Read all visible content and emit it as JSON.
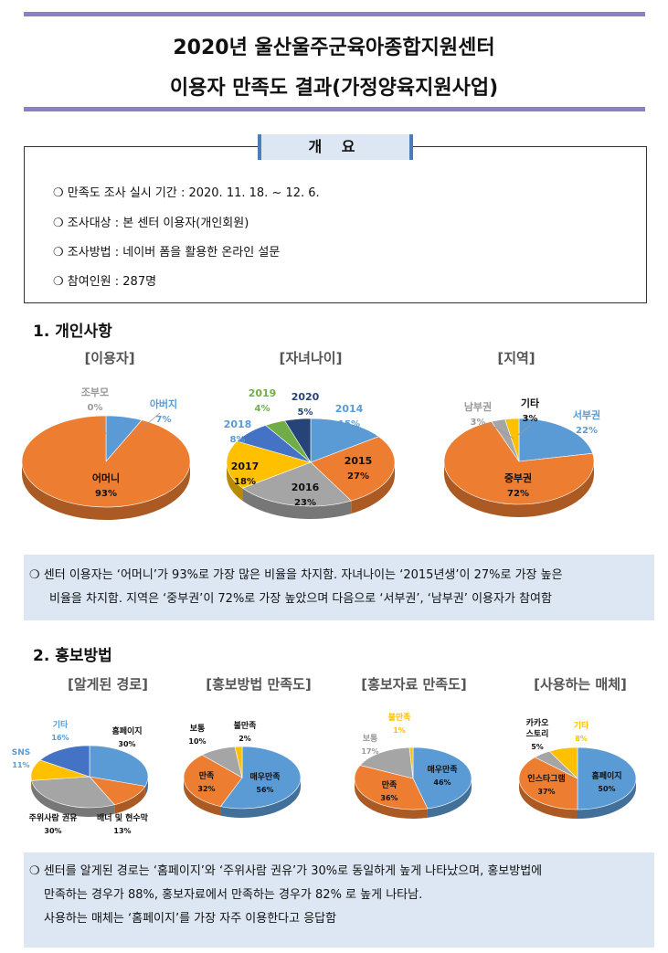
{
  "header": {
    "title_line1": "2020년 울산울주군육아종합지원센터",
    "title_line2": "이용자 만족도 결과(가정양육지원사업)"
  },
  "overview": {
    "heading": "개 요",
    "items": [
      "❍ 만족도 조사 실시 기간 : 2020. 11. 18. ~ 12. 6.",
      "❍ 조사대상 : 본 센터 이용자(개인회원)",
      "❍ 조사방법 : 네이버 폼을 활용한 온라인 설문",
      "❍ 참여인원 : 287명"
    ]
  },
  "section1": {
    "title": "1. 개인사항"
  },
  "section2": {
    "title": "2. 홍보방법"
  },
  "summary1": {
    "line1": "❍ 센터 이용자는 ‘어머니’가 93%로 가장 많은 비율을 차지함. 자녀나이는 ‘2015년생’이 27%로 가장 높은",
    "line2": "비율을 차지함. 지역은 ‘중부권’이 72%로 가장 높았으며 다음으로 ‘서부권’, ‘남부권’ 이용자가 참여함"
  },
  "summary2": {
    "line1": "❍ 센터를 알게된 경로는 ‘홈페이지’와 ‘주위사람 권유’가 30%로 동일하게 높게 나타났으며, 홍보방법에",
    "line2": "만족하는 경우가 88%, 홍보자료에서 만족하는 경우가 82% 로 높게 나타남.",
    "line3": "사용하는 매체는 ‘홈페이지’를 가장 자주 이용한다고 응답함"
  },
  "colors": {
    "blue": "#5b9bd5",
    "orange": "#ed7d31",
    "gray": "#a5a5a5",
    "yellow": "#ffc000",
    "darkblue": "#4472c4",
    "green": "#70ad47",
    "box": "#dde7f3",
    "rule": "#8b7fc7"
  },
  "chart_data": [
    {
      "type": "pie",
      "title": "[이용자]",
      "slices": [
        {
          "label": "아버지",
          "pct": "7%",
          "value": 7
        },
        {
          "label": "어머니",
          "pct": "93%",
          "value": 93
        },
        {
          "label": "조부모",
          "pct": "0%",
          "value": 0
        }
      ]
    },
    {
      "type": "pie",
      "title": "[자녀나이]",
      "slices": [
        {
          "label": "2014",
          "pct": "15%",
          "value": 15
        },
        {
          "label": "2015",
          "pct": "27%",
          "value": 27
        },
        {
          "label": "2016",
          "pct": "23%",
          "value": 23
        },
        {
          "label": "2017",
          "pct": "18%",
          "value": 18
        },
        {
          "label": "2018",
          "pct": "8%",
          "value": 8
        },
        {
          "label": "2019",
          "pct": "4%",
          "value": 4
        },
        {
          "label": "2020",
          "pct": "5%",
          "value": 5
        }
      ]
    },
    {
      "type": "pie",
      "title": "[지역]",
      "slices": [
        {
          "label": "서부권",
          "pct": "22%",
          "value": 22
        },
        {
          "label": "중부권",
          "pct": "72%",
          "value": 72
        },
        {
          "label": "남부권",
          "pct": "3%",
          "value": 3
        },
        {
          "label": "기타",
          "pct": "3%",
          "value": 3
        }
      ]
    },
    {
      "type": "pie",
      "title": "[알게된 경로]",
      "slices": [
        {
          "label": "홈페이지",
          "pct": "30%",
          "value": 30
        },
        {
          "label": "배너 및 현수막",
          "pct": "13%",
          "value": 13
        },
        {
          "label": "주위사람 권유",
          "pct": "30%",
          "value": 30
        },
        {
          "label": "SNS",
          "pct": "11%",
          "value": 11
        },
        {
          "label": "기타",
          "pct": "16%",
          "value": 16
        }
      ]
    },
    {
      "type": "pie",
      "title": "[홍보방법 만족도]",
      "slices": [
        {
          "label": "매우만족",
          "pct": "56%",
          "value": 56
        },
        {
          "label": "만족",
          "pct": "32%",
          "value": 32
        },
        {
          "label": "보통",
          "pct": "10%",
          "value": 10
        },
        {
          "label": "불만족",
          "pct": "2%",
          "value": 2
        }
      ]
    },
    {
      "type": "pie",
      "title": "[홍보자료 만족도]",
      "slices": [
        {
          "label": "매우만족",
          "pct": "46%",
          "value": 46
        },
        {
          "label": "만족",
          "pct": "36%",
          "value": 36
        },
        {
          "label": "보통",
          "pct": "17%",
          "value": 17
        },
        {
          "label": "불만족",
          "pct": "1%",
          "value": 1
        }
      ]
    },
    {
      "type": "pie",
      "title": "[사용하는 매체]",
      "slices": [
        {
          "label": "홈페이지",
          "pct": "50%",
          "value": 50
        },
        {
          "label": "인스타그램",
          "pct": "37%",
          "value": 37
        },
        {
          "label": "카카오 스토리",
          "pct": "5%",
          "value": 5
        },
        {
          "label": "기타",
          "pct": "8%",
          "value": 8
        }
      ]
    }
  ]
}
